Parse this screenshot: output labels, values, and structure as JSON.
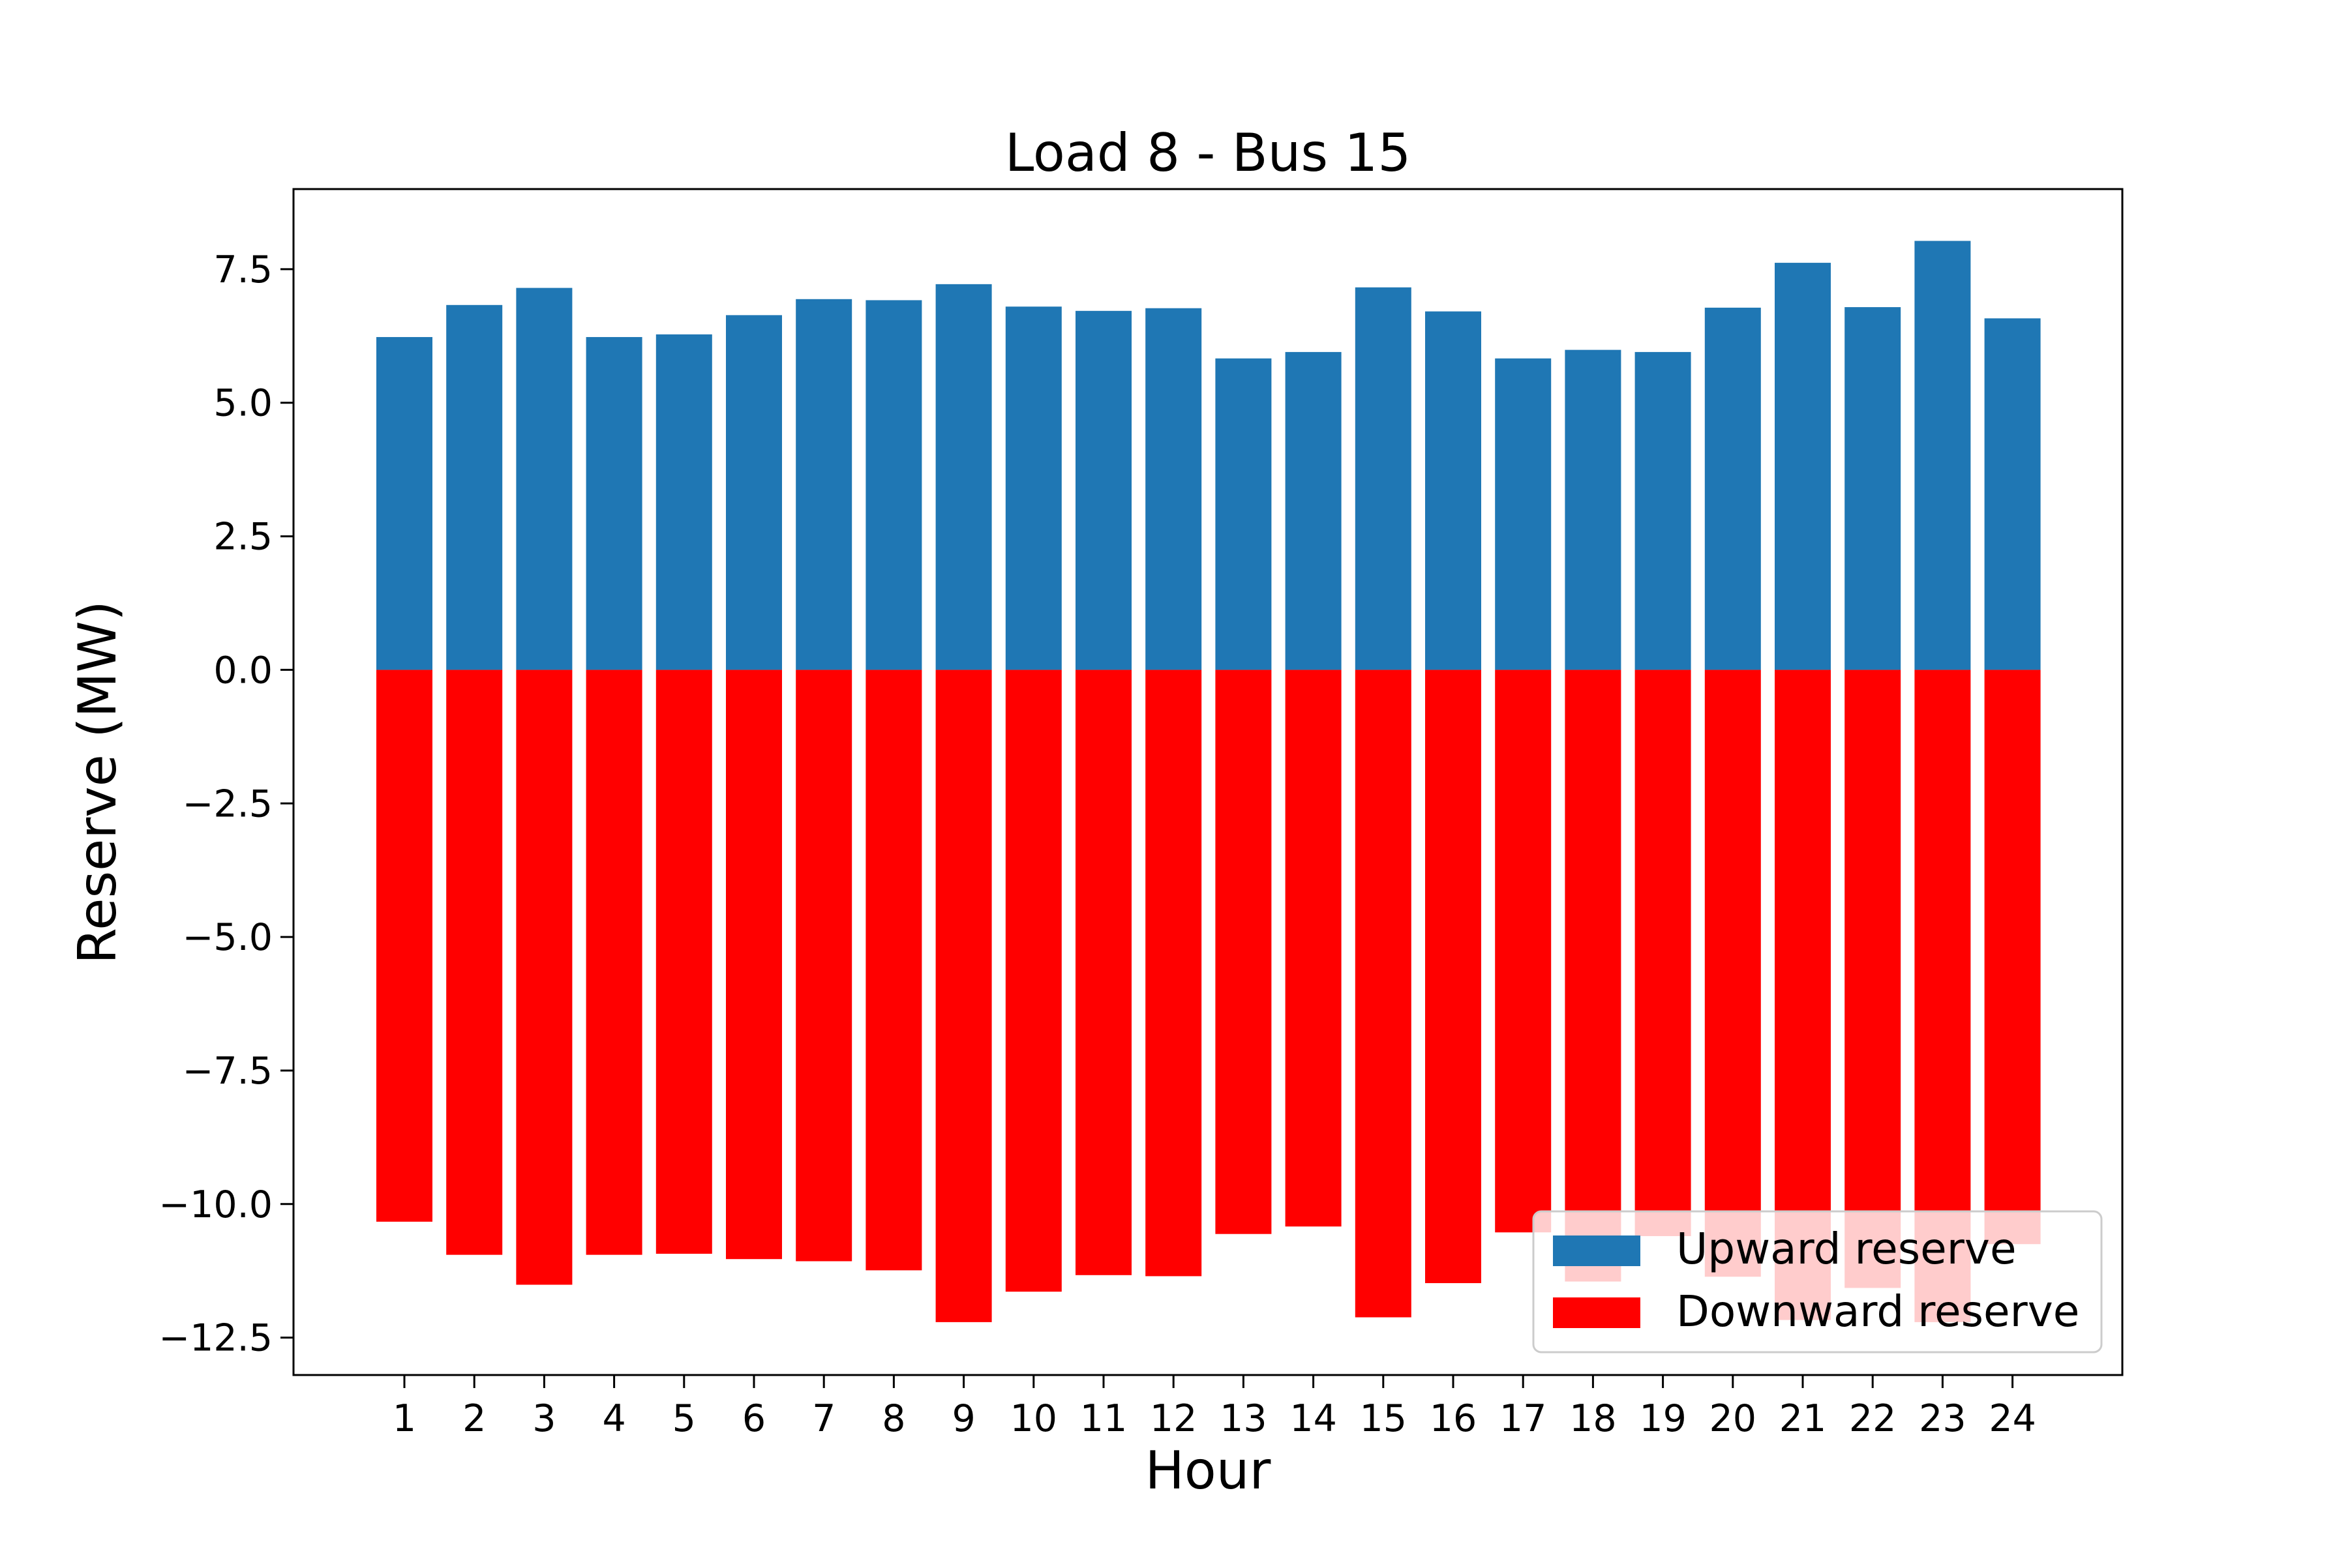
{
  "chart_data": {
    "type": "bar",
    "title": "Load 8 - Bus 15",
    "xlabel": "Hour",
    "ylabel": "Reserve (MW)",
    "ylim": [
      -13.2,
      9.0
    ],
    "yticks": [
      7.5,
      5.0,
      2.5,
      0.0,
      -2.5,
      -5.0,
      -7.5,
      -10.0,
      -12.5
    ],
    "ytick_labels": [
      "7.5",
      "5.0",
      "2.5",
      "0.0",
      "−2.5",
      "−5.0",
      "−7.5",
      "−10.0",
      "−12.5"
    ],
    "categories": [
      "1",
      "2",
      "3",
      "4",
      "5",
      "6",
      "7",
      "8",
      "9",
      "10",
      "11",
      "12",
      "13",
      "14",
      "15",
      "16",
      "17",
      "18",
      "19",
      "20",
      "21",
      "22",
      "23",
      "24"
    ],
    "grid": false,
    "legend_position": "lower-right",
    "series": [
      {
        "name": "Upward reserve",
        "color": "#1f77b4",
        "values": [
          6.23,
          6.83,
          7.15,
          6.23,
          6.28,
          6.64,
          6.94,
          6.92,
          7.22,
          6.8,
          6.72,
          6.77,
          5.83,
          5.95,
          7.16,
          6.71,
          5.83,
          5.99,
          5.95,
          6.78,
          7.62,
          6.79,
          8.03,
          6.58
        ]
      },
      {
        "name": "Downward reserve",
        "color": "#ff0000",
        "values": [
          -10.33,
          -10.95,
          -11.51,
          -10.95,
          -10.93,
          -11.03,
          -11.07,
          -11.24,
          -12.21,
          -11.64,
          -11.33,
          -11.35,
          -10.56,
          -10.42,
          -12.12,
          -11.48,
          -10.53,
          -11.45,
          -10.6,
          -11.36,
          -12.17,
          -11.57,
          -12.21,
          -10.75
        ]
      }
    ]
  }
}
